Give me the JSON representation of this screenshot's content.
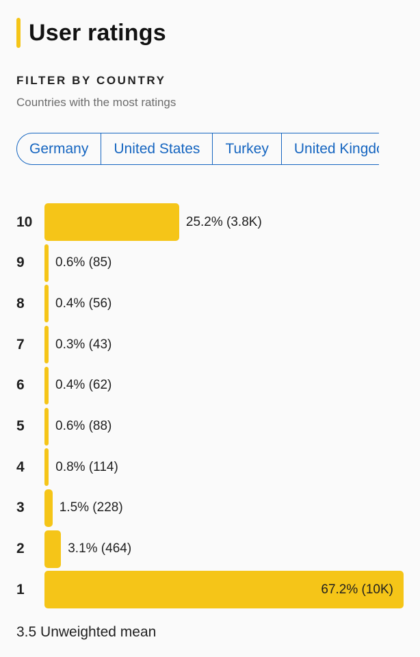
{
  "header": {
    "title": "User ratings"
  },
  "filter": {
    "heading": "FILTER BY COUNTRY",
    "subtitle": "Countries with the most ratings",
    "countries": [
      "Germany",
      "United States",
      "Turkey",
      "United Kingdom"
    ]
  },
  "colors": {
    "accent": "#f5c518",
    "link": "#1565c0"
  },
  "chart_data": {
    "type": "bar",
    "orientation": "horizontal",
    "categories": [
      "10",
      "9",
      "8",
      "7",
      "6",
      "5",
      "4",
      "3",
      "2",
      "1"
    ],
    "values": [
      25.2,
      0.6,
      0.4,
      0.3,
      0.4,
      0.6,
      0.8,
      1.5,
      3.1,
      67.2
    ],
    "data_labels": [
      "25.2% (3.8K)",
      "0.6% (85)",
      "0.4% (56)",
      "0.3% (43)",
      "0.4% (62)",
      "0.6% (88)",
      "0.8% (114)",
      "1.5% (228)",
      "3.1% (464)",
      "67.2% (10K)"
    ],
    "title": "",
    "xlabel": "",
    "ylabel": ""
  },
  "summary": {
    "mean_text": "3.5 Unweighted mean"
  }
}
